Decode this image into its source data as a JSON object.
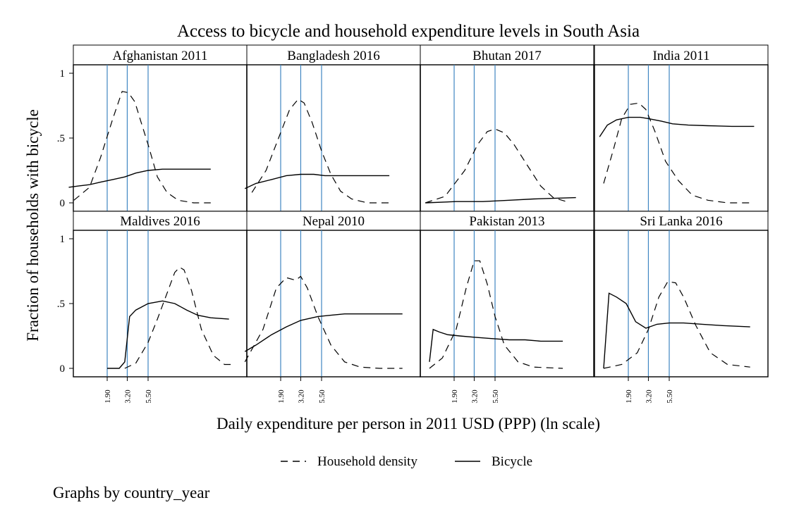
{
  "chart_data": {
    "type": "line",
    "title": "Access to bicycle and household expenditure levels in South Asia",
    "xlabel": "Daily expenditure per person in 2011 USD (PPP) (ln scale)",
    "ylabel": "Fraction of households with bicycle",
    "note": "Graphs by country_year",
    "x_scale": "ln",
    "x_reference_lines": [
      1.9,
      3.2,
      5.5
    ],
    "x_tick_labels": [
      "1.90",
      "3.20",
      "5.50"
    ],
    "y_ticks": [
      0,
      0.5,
      1
    ],
    "y_tick_labels": [
      "0",
      ".5",
      "1"
    ],
    "ylim": [
      0,
      1
    ],
    "legend": {
      "position": "bottom",
      "entries": [
        "Household density",
        "Bicycle"
      ]
    },
    "series_styles": {
      "Household density": "dashed",
      "Bicycle": "solid"
    },
    "panels": [
      {
        "name": "Afghanistan 2011",
        "bicycle": [
          [
            0.7,
            0.12
          ],
          [
            0.9,
            0.13
          ],
          [
            1.2,
            0.14
          ],
          [
            1.6,
            0.16
          ],
          [
            2.2,
            0.18
          ],
          [
            3.0,
            0.2
          ],
          [
            4.0,
            0.23
          ],
          [
            5.5,
            0.25
          ],
          [
            8,
            0.26
          ],
          [
            12,
            0.26
          ],
          [
            18,
            0.26
          ],
          [
            28,
            0.26
          ]
        ],
        "density": [
          [
            0.8,
            0.02
          ],
          [
            1.2,
            0.12
          ],
          [
            1.6,
            0.35
          ],
          [
            2.2,
            0.65
          ],
          [
            2.8,
            0.86
          ],
          [
            3.3,
            0.85
          ],
          [
            3.9,
            0.78
          ],
          [
            4.6,
            0.62
          ],
          [
            5.5,
            0.45
          ],
          [
            7,
            0.2
          ],
          [
            9,
            0.08
          ],
          [
            12,
            0.02
          ],
          [
            18,
            0
          ],
          [
            28,
            0
          ]
        ]
      },
      {
        "name": "Bangladesh 2016",
        "bicycle": [
          [
            0.75,
            0.11
          ],
          [
            1.0,
            0.15
          ],
          [
            1.5,
            0.18
          ],
          [
            2.2,
            0.21
          ],
          [
            3.2,
            0.22
          ],
          [
            4.5,
            0.22
          ],
          [
            6,
            0.21
          ],
          [
            9,
            0.21
          ],
          [
            14,
            0.21
          ],
          [
            22,
            0.21
          ],
          [
            32,
            0.21
          ]
        ],
        "density": [
          [
            0.9,
            0.08
          ],
          [
            1.3,
            0.25
          ],
          [
            1.8,
            0.5
          ],
          [
            2.4,
            0.72
          ],
          [
            3.0,
            0.8
          ],
          [
            3.5,
            0.77
          ],
          [
            4.3,
            0.62
          ],
          [
            5.5,
            0.4
          ],
          [
            7,
            0.22
          ],
          [
            9,
            0.09
          ],
          [
            12,
            0.03
          ],
          [
            18,
            0
          ],
          [
            32,
            0
          ]
        ]
      },
      {
        "name": "Bhutan 2017",
        "bicycle": [
          [
            0.9,
            0
          ],
          [
            2,
            0.01
          ],
          [
            4,
            0.01
          ],
          [
            8,
            0.02
          ],
          [
            15,
            0.03
          ],
          [
            25,
            0.035
          ],
          [
            45,
            0.04
          ]
        ],
        "density": [
          [
            0.9,
            0
          ],
          [
            1.5,
            0.05
          ],
          [
            2.5,
            0.25
          ],
          [
            3.5,
            0.45
          ],
          [
            4.5,
            0.55
          ],
          [
            5.5,
            0.57
          ],
          [
            7,
            0.54
          ],
          [
            9,
            0.45
          ],
          [
            13,
            0.28
          ],
          [
            18,
            0.13
          ],
          [
            25,
            0.04
          ],
          [
            35,
            0.01
          ]
        ]
      },
      {
        "name": "India 2011",
        "bicycle": [
          [
            0.9,
            0.51
          ],
          [
            1.1,
            0.6
          ],
          [
            1.4,
            0.64
          ],
          [
            1.9,
            0.66
          ],
          [
            2.6,
            0.66
          ],
          [
            3.2,
            0.65
          ],
          [
            4.5,
            0.63
          ],
          [
            6,
            0.61
          ],
          [
            9,
            0.6
          ],
          [
            15,
            0.595
          ],
          [
            28,
            0.59
          ],
          [
            50,
            0.59
          ]
        ],
        "density": [
          [
            1.0,
            0.15
          ],
          [
            1.3,
            0.42
          ],
          [
            1.6,
            0.65
          ],
          [
            2.0,
            0.76
          ],
          [
            2.5,
            0.77
          ],
          [
            3.0,
            0.72
          ],
          [
            3.8,
            0.55
          ],
          [
            5.0,
            0.32
          ],
          [
            7,
            0.17
          ],
          [
            10,
            0.06
          ],
          [
            15,
            0.02
          ],
          [
            25,
            0
          ],
          [
            45,
            0
          ]
        ]
      },
      {
        "name": "Maldives 2016",
        "bicycle": [
          [
            1.9,
            0
          ],
          [
            2.6,
            0
          ],
          [
            3.0,
            0.05
          ],
          [
            3.4,
            0.4
          ],
          [
            4.0,
            0.45
          ],
          [
            5.5,
            0.5
          ],
          [
            8,
            0.52
          ],
          [
            11,
            0.5
          ],
          [
            15,
            0.45
          ],
          [
            20,
            0.41
          ],
          [
            28,
            0.39
          ],
          [
            45,
            0.38
          ]
        ],
        "density": [
          [
            3.0,
            0
          ],
          [
            4.0,
            0.04
          ],
          [
            5.5,
            0.2
          ],
          [
            7,
            0.38
          ],
          [
            9,
            0.58
          ],
          [
            11,
            0.74
          ],
          [
            12.5,
            0.78
          ],
          [
            14,
            0.76
          ],
          [
            17,
            0.6
          ],
          [
            22,
            0.3
          ],
          [
            30,
            0.1
          ],
          [
            40,
            0.03
          ],
          [
            48,
            0.03
          ]
        ]
      },
      {
        "name": "Nepal 2010",
        "bicycle": [
          [
            0.75,
            0.13
          ],
          [
            1.0,
            0.18
          ],
          [
            1.5,
            0.26
          ],
          [
            2.2,
            0.32
          ],
          [
            3.2,
            0.37
          ],
          [
            5,
            0.4
          ],
          [
            7,
            0.41
          ],
          [
            10,
            0.42
          ],
          [
            16,
            0.42
          ],
          [
            25,
            0.42
          ],
          [
            45,
            0.42
          ]
        ],
        "density": [
          [
            0.75,
            0.05
          ],
          [
            1.2,
            0.3
          ],
          [
            1.7,
            0.62
          ],
          [
            2.2,
            0.7
          ],
          [
            2.8,
            0.68
          ],
          [
            3.2,
            0.71
          ],
          [
            3.8,
            0.62
          ],
          [
            5,
            0.4
          ],
          [
            7,
            0.18
          ],
          [
            10,
            0.05
          ],
          [
            15,
            0.01
          ],
          [
            25,
            0
          ],
          [
            45,
            0
          ]
        ]
      },
      {
        "name": "Pakistan 2013",
        "bicycle": [
          [
            1.0,
            0.05
          ],
          [
            1.1,
            0.3
          ],
          [
            1.3,
            0.28
          ],
          [
            1.6,
            0.26
          ],
          [
            2.2,
            0.25
          ],
          [
            3.2,
            0.24
          ],
          [
            5,
            0.23
          ],
          [
            8,
            0.22
          ],
          [
            12,
            0.22
          ],
          [
            18,
            0.21
          ],
          [
            32,
            0.21
          ]
        ],
        "density": [
          [
            1.0,
            0
          ],
          [
            1.4,
            0.08
          ],
          [
            2.0,
            0.3
          ],
          [
            2.6,
            0.62
          ],
          [
            3.2,
            0.83
          ],
          [
            3.7,
            0.83
          ],
          [
            4.5,
            0.65
          ],
          [
            5.5,
            0.4
          ],
          [
            7,
            0.18
          ],
          [
            10,
            0.05
          ],
          [
            15,
            0.01
          ],
          [
            32,
            0
          ]
        ]
      },
      {
        "name": "Sri Lanka 2016",
        "bicycle": [
          [
            1.0,
            0
          ],
          [
            1.15,
            0.58
          ],
          [
            1.4,
            0.55
          ],
          [
            1.8,
            0.5
          ],
          [
            2.3,
            0.36
          ],
          [
            3.0,
            0.31
          ],
          [
            4.0,
            0.34
          ],
          [
            5.5,
            0.35
          ],
          [
            8,
            0.35
          ],
          [
            13,
            0.34
          ],
          [
            22,
            0.33
          ],
          [
            45,
            0.32
          ]
        ],
        "density": [
          [
            1.0,
            0
          ],
          [
            1.6,
            0.03
          ],
          [
            2.4,
            0.12
          ],
          [
            3.2,
            0.3
          ],
          [
            4.2,
            0.55
          ],
          [
            5.3,
            0.67
          ],
          [
            6.5,
            0.66
          ],
          [
            8,
            0.55
          ],
          [
            11,
            0.33
          ],
          [
            16,
            0.12
          ],
          [
            25,
            0.03
          ],
          [
            45,
            0.01
          ]
        ]
      }
    ]
  }
}
